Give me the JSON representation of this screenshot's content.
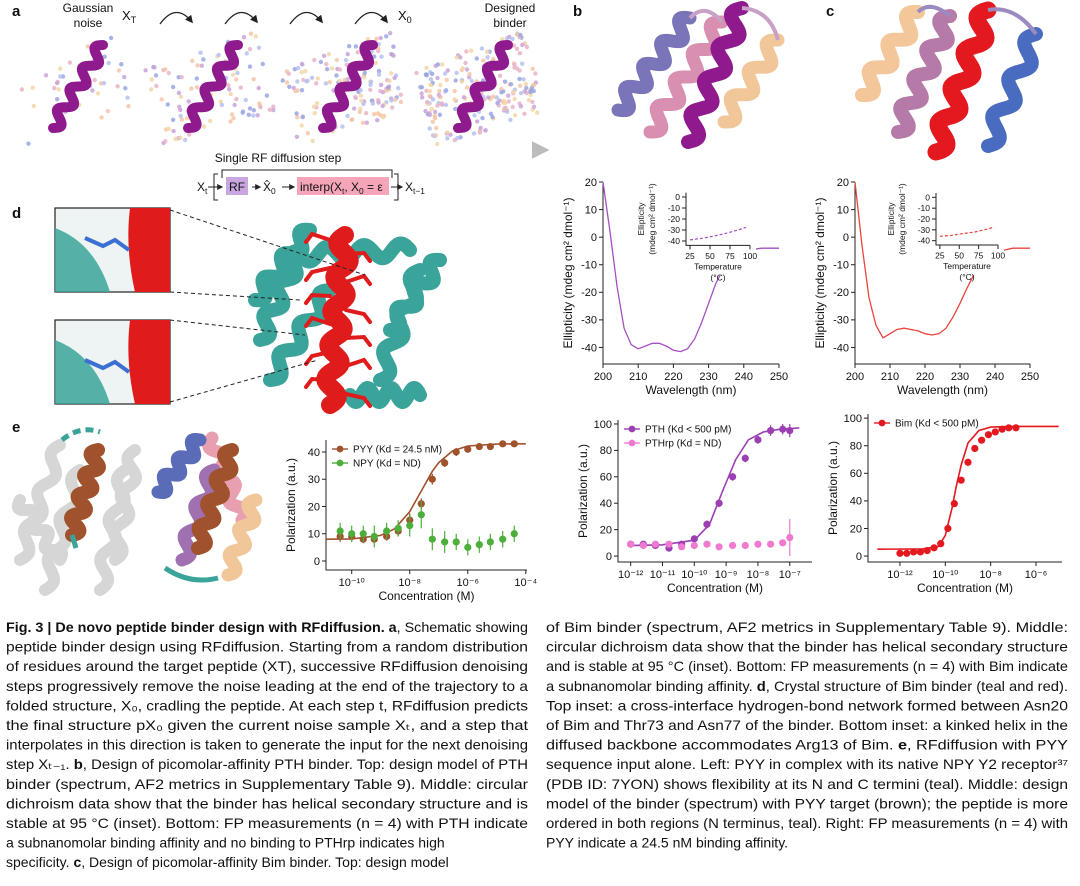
{
  "labels": [
    "a",
    "b",
    "c",
    "d",
    "e"
  ],
  "schematic": {
    "start": [
      "Gaussian",
      "noise"
    ],
    "x_T": [
      "X",
      "T"
    ],
    "x_0": [
      "X",
      "0"
    ],
    "end": [
      "Designed",
      "binder"
    ],
    "step_title": "Single RF diffusion step",
    "eq_xt": [
      "X",
      "t"
    ],
    "eq_rf": "RF",
    "eq_x0hat": [
      "X̂",
      "0"
    ],
    "eq_interp": [
      "interp(X",
      "t",
      ", X",
      "0",
      " = ε"
    ],
    "eq_xt1": [
      "X",
      "t−1"
    ]
  },
  "chart_data": [
    {
      "type": "line",
      "xlabel": "Wavelength (nm)",
      "ylabel": "Ellipticity (mdeg cm² dmol⁻¹)",
      "x": [
        200,
        202,
        204,
        206,
        208,
        210,
        212,
        214,
        216,
        218,
        220,
        222,
        224,
        226,
        228,
        230,
        232,
        234,
        236,
        238,
        240,
        245,
        250
      ],
      "series": [
        {
          "color": "#a64fc0",
          "values": [
            20,
            2,
            -18,
            -33,
            -39,
            -40.5,
            -39.5,
            -38.5,
            -38.5,
            -39.5,
            -41,
            -41.5,
            -40.5,
            -37,
            -31,
            -24,
            -17,
            -12,
            -8.5,
            -6.5,
            -5,
            -4,
            -4
          ]
        }
      ],
      "xlim": [
        200,
        250
      ],
      "xticks": [
        200,
        210,
        220,
        230,
        240,
        250
      ],
      "ylim": [
        -46,
        20
      ],
      "yticks": [
        20,
        10,
        0,
        -10,
        -20,
        -30,
        -40
      ]
    },
    {
      "type": "line",
      "xlabel": [
        "Temperature",
        "(°C)"
      ],
      "ylabel": [
        "Ellipticity",
        "(mdeg cm² dmol⁻¹)"
      ],
      "linestyle": "dashed",
      "x": [
        25,
        40,
        55,
        70,
        85,
        95
      ],
      "series": [
        {
          "color": "#a64fc0",
          "values": [
            -39,
            -37.5,
            -35.5,
            -33,
            -30,
            -27.5
          ]
        }
      ],
      "xlim": [
        20,
        100
      ],
      "xticks": [
        25,
        50,
        75,
        100
      ],
      "ylim": [
        -44,
        4
      ],
      "yticks": [
        0,
        -10,
        -20,
        -30,
        -40
      ]
    },
    {
      "type": "line",
      "xlabel": "Wavelength (nm)",
      "ylabel": "Ellipticity (mdeg cm² dmol⁻¹)",
      "x": [
        200,
        202,
        204,
        206,
        208,
        210,
        212,
        214,
        216,
        218,
        220,
        222,
        224,
        226,
        228,
        230,
        232,
        234,
        236,
        238,
        240,
        245,
        250
      ],
      "series": [
        {
          "color": "#e8453c",
          "values": [
            20,
            -3,
            -22,
            -32,
            -36.5,
            -35,
            -33.5,
            -33,
            -33.5,
            -34,
            -35,
            -35.5,
            -35,
            -33,
            -29,
            -24,
            -18.5,
            -13.5,
            -9.5,
            -7,
            -5.5,
            -4,
            -4
          ]
        }
      ],
      "xlim": [
        200,
        250
      ],
      "xticks": [
        200,
        210,
        220,
        230,
        240,
        250
      ],
      "ylim": [
        -46,
        20
      ],
      "yticks": [
        20,
        10,
        0,
        -10,
        -20,
        -30,
        -40
      ]
    },
    {
      "type": "line",
      "xlabel": [
        "Temperature",
        "(°C)"
      ],
      "ylabel": [
        "Ellipticity",
        "(mdeg cm² dmol⁻¹)"
      ],
      "linestyle": "dashed",
      "x": [
        25,
        40,
        55,
        70,
        85,
        95
      ],
      "series": [
        {
          "color": "#e8453c",
          "values": [
            -36,
            -35,
            -33.5,
            -32,
            -29.5,
            -27.5
          ]
        }
      ],
      "xlim": [
        20,
        100
      ],
      "xticks": [
        25,
        50,
        75,
        100
      ],
      "ylim": [
        -44,
        4
      ],
      "yticks": [
        0,
        -10,
        -20,
        -30,
        -40
      ]
    },
    {
      "type": "scatter",
      "xlabel": "Concentration (M)",
      "ylabel": "Polarization (a.u.)",
      "xscale": "log",
      "x": [
        4e-11,
        1e-10,
        2.5e-10,
        6e-10,
        1.6e-09,
        4e-09,
        1e-08,
        2.5e-08,
        6e-08,
        1.6e-07,
        4e-07,
        1e-06,
        2.5e-06,
        6e-06,
        1.6e-05,
        4e-05
      ],
      "series": [
        {
          "name": "PYY (Kd = 24.5 nM)",
          "color": "#a0522d",
          "values": [
            9,
            9,
            8,
            8,
            9,
            11,
            15,
            21,
            30,
            36,
            40,
            41,
            42,
            42,
            43,
            43
          ],
          "errors": [
            2,
            2,
            1.5,
            1.5,
            1.5,
            2,
            2.5,
            2,
            2,
            1.5,
            1.5,
            1,
            1,
            1,
            1,
            1
          ],
          "fit": {
            "x": [
              1.3e-11,
              1e-10,
              1e-09,
              3e-09,
              1e-08,
              2.45e-08,
              6e-08,
              1e-07,
              3e-07,
              1e-06,
              1e-05,
              0.0001
            ],
            "values": [
              8,
              8.1,
              9.4,
              11.8,
              18.1,
              25.5,
              32.9,
              36.1,
              40.4,
              42.2,
              42.9,
              43
            ]
          }
        },
        {
          "name": "NPY (Kd = ND)",
          "color": "#4caf3a",
          "values": [
            11,
            10,
            10,
            9,
            11,
            12,
            13,
            17,
            8,
            7,
            7,
            5,
            6,
            7,
            8,
            10
          ],
          "errors": [
            3,
            3,
            3,
            4,
            3,
            3,
            4,
            5,
            4,
            4,
            3,
            3,
            3,
            3,
            3,
            3
          ]
        }
      ],
      "xlim": [
        1.3e-11,
        0.00011
      ],
      "xticks": [
        {
          "value": 1e-10,
          "label": "10⁻¹⁰"
        },
        {
          "value": 1e-08,
          "label": "10⁻⁸"
        },
        {
          "value": 1e-06,
          "label": "10⁻⁶"
        },
        {
          "value": 0.0001,
          "label": "10⁻⁴"
        }
      ],
      "ylim": [
        -3.3,
        44.4
      ],
      "yticks": [
        0,
        10,
        20,
        30,
        40
      ]
    },
    {
      "type": "scatter",
      "xlabel": "Concentration (M)",
      "ylabel": "Polarization (a.u.)",
      "xscale": "log",
      "x": [
        1e-12,
        2.5e-12,
        6e-12,
        1.6e-11,
        4e-11,
        1e-10,
        2.5e-10,
        6e-10,
        1.6e-09,
        4e-09,
        1e-08,
        2.5e-08,
        6e-08,
        1e-07
      ],
      "series": [
        {
          "name": "PTH (Kd < 500 pM)",
          "color": "#9b3fb3",
          "values": [
            9,
            9,
            8,
            6,
            9,
            13,
            24,
            40,
            60,
            74,
            88,
            95,
            96,
            95
          ],
          "errors": [
            2,
            2,
            2,
            2,
            2,
            2,
            3,
            3,
            3,
            3,
            3,
            4,
            4,
            5
          ],
          "fit": {
            "x": [
              1e-12,
              1e-11,
              1e-10,
              3e-10,
              8e-10,
              2e-09,
              5e-09,
              1.5e-08,
              5e-08,
              2e-07
            ],
            "values": [
              8,
              8.5,
              12,
              24,
              50,
              73,
              88,
              94,
              96,
              97
            ]
          }
        },
        {
          "name": "PTHrp (Kd = ND)",
          "color": "#f07ad0",
          "values": [
            9,
            8,
            9,
            9,
            7,
            8,
            9,
            7,
            8,
            8,
            9,
            9,
            10,
            14
          ],
          "errors": [
            2,
            2,
            2,
            2,
            2,
            2,
            2,
            2,
            2,
            2,
            2,
            2,
            2,
            14
          ]
        }
      ],
      "xlim": [
        4e-13,
        5e-07
      ],
      "xticks": [
        {
          "value": 1e-12,
          "label": "10⁻¹²"
        },
        {
          "value": 1e-11,
          "label": "10⁻¹¹"
        },
        {
          "value": 1e-10,
          "label": "10⁻¹⁰"
        },
        {
          "value": 1e-09,
          "label": "10⁻⁹"
        },
        {
          "value": 1e-08,
          "label": "10⁻⁸"
        },
        {
          "value": 1e-07,
          "label": "10⁻⁷"
        }
      ],
      "ylim": [
        -4.5,
        103
      ],
      "yticks": [
        0,
        20,
        40,
        60,
        80,
        100
      ]
    },
    {
      "type": "scatter",
      "xlabel": "Concentration (M)",
      "ylabel": "Polarization (a.u.)",
      "xscale": "log",
      "x": [
        1e-12,
        2e-12,
        4e-12,
        8e-12,
        1.6e-11,
        3.2e-11,
        6.3e-11,
        1.3e-10,
        2.5e-10,
        5e-10,
        1e-09,
        2e-09,
        4e-09,
        8e-09,
        1.6e-08,
        3.2e-08,
        6.3e-08,
        1.3e-07
      ],
      "series": [
        {
          "name": "Bim (Kd < 500 pM)",
          "color": "#e3191f",
          "values": [
            2,
            2,
            3,
            3,
            4,
            6,
            9,
            20,
            38,
            55,
            68,
            78,
            84,
            88,
            90,
            92,
            93,
            93
          ],
          "errors": [
            1,
            1,
            1,
            1,
            1,
            1,
            2,
            2,
            2,
            2,
            2,
            2,
            2,
            2,
            1.5,
            1.5,
            1.5,
            1.5
          ],
          "fit": {
            "x": [
              1e-13,
              1e-11,
              5e-11,
              1e-10,
              2e-10,
              3e-10,
              5e-10,
              1e-09,
              3e-09,
              1e-08,
              1e-07,
              1e-05
            ],
            "values": [
              5,
              5.2,
              7,
              15,
              35,
              50,
              66,
              82,
              91,
              93.5,
              94,
              94
            ]
          }
        }
      ],
      "xlim": [
        3.9e-14,
        1.4e-05
      ],
      "xticks": [
        {
          "value": 1e-12,
          "label": "10⁻¹²"
        },
        {
          "value": 1e-10,
          "label": "10⁻¹⁰"
        },
        {
          "value": 1e-08,
          "label": "10⁻⁸"
        },
        {
          "value": 1e-06,
          "label": "10⁻⁶"
        }
      ],
      "ylim": [
        -4.3,
        103
      ],
      "yticks": [
        0,
        20,
        40,
        60,
        80,
        100
      ]
    }
  ],
  "caption": {
    "col1": [
      [
        {
          "b": "Fig. 3 | De novo peptide binder design with RFdiffusion. a"
        },
        ", Schematic showing"
      ],
      "peptide binder design using RFdiffusion. Starting from a random distribution",
      "of residues around the target peptide (XT), successive RFdiffusion denoising",
      "steps progressively remove the noise leading at the end of the trajectory to a",
      "folded structure, X₀, cradling the peptide. At each step t, RFdiffusion predicts",
      "the final structure pX₀ given the current noise sample Xₜ, and a step that",
      "interpolates in this direction is taken to generate the input for the next denoising",
      [
        "step Xₜ₋₁. ",
        {
          "b": "b"
        },
        ", Design of picomolar-affinity PTH binder. Top: design model of PTH"
      ],
      "binder (spectrum, AF2 metrics in Supplementary Table 9). Middle: circular",
      "dichroism data show that the binder has helical secondary structure and is",
      "stable at 95 °C (inset). Bottom: FP measurements (n = 4) with PTH indicate",
      "a subnanomolar binding affinity and no binding to PTHrp indicates high",
      [
        "specificity. ",
        {
          "b": "c"
        },
        ", Design of picomolar-affinity Bim binder. Top: design model"
      ]
    ],
    "col2": [
      "of Bim binder (spectrum, AF2 metrics in Supplementary Table 9). Middle:",
      "circular dichroism data show that the binder has helical secondary structure",
      "and is stable at 95 °C (inset). Bottom: FP measurements (n = 4) with Bim indicate",
      [
        "a subnanomolar binding affinity. ",
        {
          "b": "d"
        },
        ", Crystal structure of Bim binder (teal and red)."
      ],
      "Top inset: a cross-interface hydrogen-bond network formed between Asn20",
      "of Bim and Thr73 and Asn77 of the binder. Bottom inset: a kinked helix in the",
      [
        "diffused backbone accommodates Arg13 of Bim. ",
        {
          "b": "e"
        },
        ", RFdiffusion with PYY"
      ],
      "sequence input alone. Left: PYY in complex with its native NPY Y2 receptor³⁷",
      "(PDB ID: 7YON) shows flexibility at its N and C termini (teal). Middle: design",
      "model of the binder (spectrum) with PYY target (brown); the peptide is more",
      "ordered in both regions (N terminus, teal). Right: FP measurements (n = 4) with",
      "PYY indicate a 24.5 nM binding affinity."
    ]
  }
}
